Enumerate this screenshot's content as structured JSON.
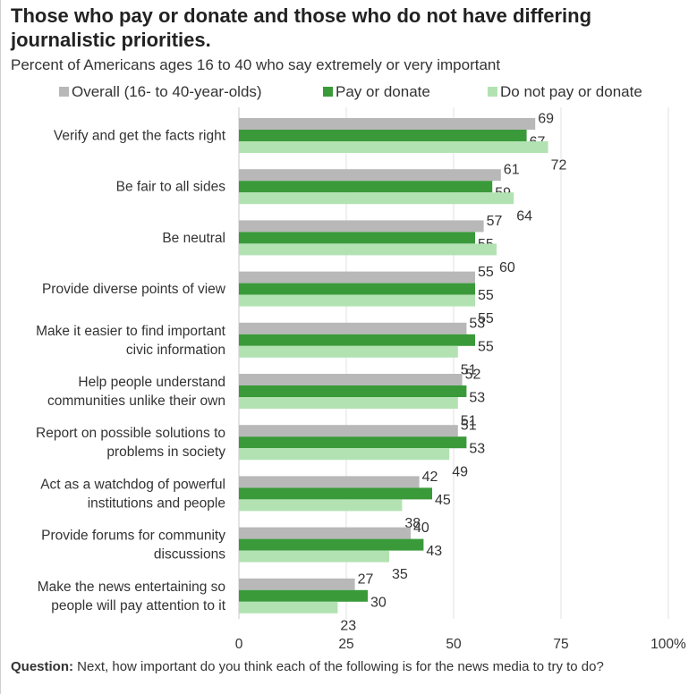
{
  "title": "Those who pay or donate and those who do not have differing journalistic priorities.",
  "subtitle": "Percent of Americans ages 16 to 40 who say extremely or very important",
  "footnote": {
    "label": "Question:",
    "text": "Next, how important do you think each of the following is for the news media to try to do?"
  },
  "chart_data": {
    "type": "bar",
    "orientation": "horizontal",
    "categories": [
      [
        "Verify and get the facts right"
      ],
      [
        "Be fair to all sides"
      ],
      [
        "Be neutral"
      ],
      [
        "Provide diverse points of view"
      ],
      [
        "Make it easier to find important",
        "civic information"
      ],
      [
        "Help people understand",
        "communities unlike their own"
      ],
      [
        "Report on possible solutions to",
        "problems in society"
      ],
      [
        "Act as a watchdog of powerful",
        "institutions and people"
      ],
      [
        "Provide forums for community",
        "discussions"
      ],
      [
        "Make the news entertaining so",
        "people will pay attention to it"
      ]
    ],
    "series": [
      {
        "name": "Overall (16- to 40-year-olds)",
        "color": "#b8b8b8",
        "values": [
          69,
          61,
          57,
          55,
          53,
          52,
          51,
          42,
          40,
          27
        ]
      },
      {
        "name": "Pay or donate",
        "color": "#3a9a3a",
        "values": [
          67,
          59,
          55,
          55,
          55,
          53,
          53,
          45,
          43,
          30
        ]
      },
      {
        "name": "Do not pay or donate",
        "color": "#b2e2b2",
        "values": [
          72,
          64,
          60,
          55,
          51,
          51,
          49,
          38,
          35,
          23
        ]
      }
    ],
    "xlim": [
      0,
      100
    ],
    "xticks": [
      "0",
      "25",
      "50",
      "75",
      "100%"
    ],
    "grid": true,
    "legend_position": "top"
  }
}
